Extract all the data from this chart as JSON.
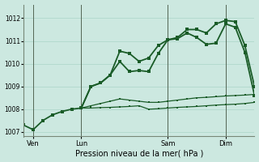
{
  "title": "Pression niveau de la mer( hPa )",
  "background_color": "#cce8e0",
  "grid_color": "#b0d8cc",
  "line_color": "#1a5c28",
  "xlim": [
    0,
    72
  ],
  "ylim": [
    1006.8,
    1012.6
  ],
  "yticks": [
    1007,
    1008,
    1009,
    1010,
    1011,
    1012
  ],
  "ytick_fontsize": 5.5,
  "xtick_fontsize": 6,
  "xlabel_fontsize": 7,
  "x_day_labels": [
    {
      "label": "Ven",
      "x": 3
    },
    {
      "label": "Lun",
      "x": 18
    },
    {
      "label": "Sam",
      "x": 45
    },
    {
      "label": "Dim",
      "x": 63
    }
  ],
  "vlines": [
    3,
    18,
    45,
    63
  ],
  "series": [
    {
      "x": [
        0,
        3,
        6,
        9,
        12,
        15,
        18,
        21,
        24,
        27,
        30,
        33,
        36,
        39,
        42,
        45,
        48,
        51,
        54,
        57,
        60,
        63,
        66,
        69,
        72
      ],
      "y": [
        1007.3,
        1007.1,
        1007.5,
        1007.75,
        1007.9,
        1008.0,
        1008.05,
        1009.0,
        1009.15,
        1009.5,
        1010.55,
        1010.45,
        1010.1,
        1010.25,
        1010.8,
        1011.05,
        1011.15,
        1011.5,
        1011.5,
        1011.35,
        1011.75,
        1011.9,
        1011.85,
        1010.8,
        1009.0
      ],
      "linewidth": 1.3,
      "markersize": 2.5
    },
    {
      "x": [
        18,
        21,
        24,
        27,
        30,
        33,
        36,
        39,
        42,
        45,
        48,
        51,
        54,
        57,
        60,
        63,
        66,
        69,
        72
      ],
      "y": [
        1008.05,
        1009.0,
        1009.15,
        1009.5,
        1010.1,
        1009.65,
        1009.7,
        1009.65,
        1010.45,
        1011.05,
        1011.1,
        1011.35,
        1011.15,
        1010.85,
        1010.9,
        1011.75,
        1011.6,
        1010.5,
        1008.6
      ],
      "linewidth": 1.3,
      "markersize": 2.5
    },
    {
      "x": [
        18,
        21,
        24,
        27,
        30,
        33,
        36,
        39,
        42,
        45,
        48,
        51,
        54,
        57,
        60,
        63,
        66,
        69,
        72
      ],
      "y": [
        1008.05,
        1008.05,
        1008.07,
        1008.08,
        1008.1,
        1008.12,
        1008.15,
        1008.0,
        1008.02,
        1008.05,
        1008.08,
        1008.1,
        1008.12,
        1008.15,
        1008.18,
        1008.2,
        1008.22,
        1008.25,
        1008.3
      ],
      "linewidth": 0.9,
      "markersize": 2.0
    },
    {
      "x": [
        18,
        21,
        24,
        27,
        30,
        33,
        36,
        39,
        42,
        45,
        48,
        51,
        54,
        57,
        60,
        63,
        66,
        69,
        72
      ],
      "y": [
        1008.05,
        1008.15,
        1008.25,
        1008.35,
        1008.45,
        1008.4,
        1008.35,
        1008.3,
        1008.3,
        1008.35,
        1008.4,
        1008.45,
        1008.5,
        1008.52,
        1008.55,
        1008.58,
        1008.6,
        1008.62,
        1008.65
      ],
      "linewidth": 0.9,
      "markersize": 2.0
    }
  ]
}
